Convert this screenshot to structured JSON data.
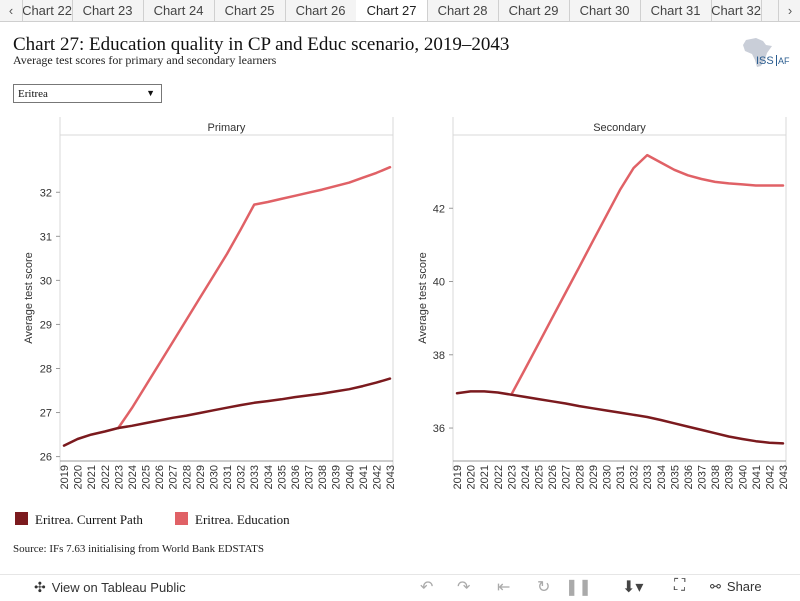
{
  "tabs": {
    "prev_icon": "chevron-left-icon",
    "next_icon": "chevron-right-icon",
    "items": [
      "Chart 22",
      "Chart 23",
      "Chart 24",
      "Chart 25",
      "Chart 26",
      "Chart 27",
      "Chart 28",
      "Chart 29",
      "Chart 30",
      "Chart 31",
      "Chart 32"
    ],
    "active": "Chart 27"
  },
  "header": {
    "title": "Chart 27: Education quality in CP and Educ scenario, 2019–2043",
    "subtitle": "Average test scores for primary and secondary learners",
    "logo_text": "ISS",
    "logo_text_2": "AF"
  },
  "filter": {
    "selected": "Eritrea"
  },
  "chart_data": {
    "type": "line",
    "ylabel": "Average test score",
    "x": [
      2019,
      2020,
      2021,
      2022,
      2023,
      2024,
      2025,
      2026,
      2027,
      2028,
      2029,
      2030,
      2031,
      2032,
      2033,
      2034,
      2035,
      2036,
      2037,
      2038,
      2039,
      2040,
      2041,
      2042,
      2043
    ],
    "panels": [
      {
        "title": "Primary",
        "ylim": [
          25.9,
          33.3
        ],
        "yticks": [
          26,
          27,
          28,
          29,
          30,
          31,
          32
        ],
        "series": [
          {
            "name": "Eritrea. Current Path",
            "color": "#7b1a1e",
            "values": [
              26.25,
              26.4,
              26.5,
              26.57,
              26.65,
              26.7,
              26.76,
              26.82,
              26.88,
              26.93,
              26.99,
              27.05,
              27.11,
              27.17,
              27.22,
              27.26,
              27.3,
              27.35,
              27.39,
              27.43,
              27.48,
              27.53,
              27.6,
              27.68,
              27.77
            ]
          },
          {
            "name": "Eritrea. Education",
            "color": "#e06166",
            "values": [
              null,
              null,
              null,
              null,
              26.65,
              27.1,
              27.6,
              28.1,
              28.6,
              29.1,
              29.6,
              30.1,
              30.6,
              31.15,
              31.72,
              31.78,
              31.85,
              31.92,
              31.99,
              32.06,
              32.14,
              32.22,
              32.33,
              32.44,
              32.57
            ]
          }
        ]
      },
      {
        "title": "Secondary",
        "ylim": [
          35.1,
          44.0
        ],
        "yticks": [
          36,
          38,
          40,
          42
        ],
        "series": [
          {
            "name": "Eritrea. Current Path",
            "color": "#7b1a1e",
            "values": [
              36.95,
              37.0,
              37.0,
              36.97,
              36.91,
              36.85,
              36.79,
              36.73,
              36.67,
              36.6,
              36.54,
              36.48,
              36.42,
              36.36,
              36.3,
              36.22,
              36.13,
              36.04,
              35.95,
              35.86,
              35.77,
              35.7,
              35.64,
              35.6,
              35.58
            ]
          },
          {
            "name": "Eritrea. Education",
            "color": "#e06166",
            "values": [
              null,
              null,
              null,
              null,
              36.91,
              37.6,
              38.3,
              39.0,
              39.7,
              40.4,
              41.1,
              41.8,
              42.5,
              43.1,
              43.45,
              43.25,
              43.05,
              42.9,
              42.8,
              42.72,
              42.68,
              42.65,
              42.62,
              42.62,
              42.62
            ]
          }
        ]
      }
    ],
    "legend": [
      "Eritrea. Current Path",
      "Eritrea. Education"
    ],
    "legend_placement": "bottom-left"
  },
  "source": "Source: IFs 7.63 initialising from World Bank EDSTATS",
  "footer": {
    "view_label": "View on Tableau Public",
    "share_label": "Share",
    "icons": [
      "tableau-icon",
      "undo-icon",
      "redo-icon",
      "revert-icon",
      "refresh-icon",
      "pause-icon",
      "download-icon",
      "fullscreen-icon",
      "share-icon"
    ]
  }
}
